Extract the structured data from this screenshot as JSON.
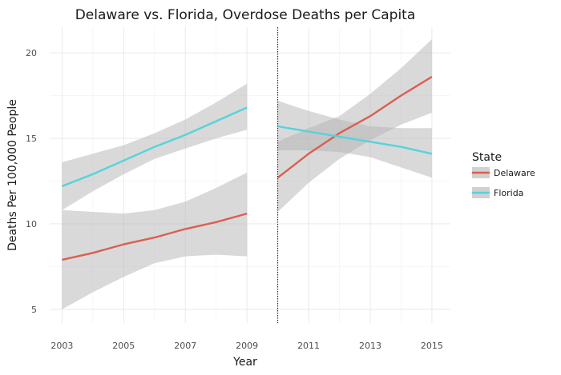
{
  "chart_data": {
    "type": "line",
    "title": "Delaware vs. Florida, Overdose Deaths per Capita",
    "xlabel": "Year",
    "ylabel": "Deaths Per 100,000 People",
    "xlim": [
      2002.6,
      2015.6
    ],
    "ylim": [
      4.2,
      21.5
    ],
    "x_ticks": [
      2003,
      2005,
      2007,
      2009,
      2011,
      2013,
      2015
    ],
    "y_ticks": [
      5,
      10,
      15,
      20
    ],
    "grid": true,
    "legend": {
      "title": "State",
      "position": "right"
    },
    "vline": {
      "x": 2010,
      "style": "dotted"
    },
    "band_color": "#b3b3b3",
    "series": [
      {
        "name": "Delaware",
        "color": "#d95f51",
        "segments": [
          {
            "x": [
              2003,
              2004,
              2005,
              2006,
              2007,
              2008,
              2009
            ],
            "y": [
              7.9,
              8.3,
              8.8,
              9.2,
              9.7,
              10.1,
              10.6
            ],
            "ci_low": [
              5.0,
              6.0,
              6.9,
              7.7,
              8.1,
              8.2,
              8.1
            ],
            "ci_high": [
              10.8,
              10.7,
              10.6,
              10.8,
              11.3,
              12.1,
              13.0
            ]
          },
          {
            "x": [
              2010,
              2011,
              2012,
              2013,
              2014,
              2015
            ],
            "y": [
              12.7,
              14.1,
              15.3,
              16.3,
              17.5,
              18.6
            ],
            "ci_low": [
              10.7,
              12.4,
              13.8,
              14.9,
              15.8,
              16.5
            ],
            "ci_high": [
              14.8,
              15.6,
              16.3,
              17.6,
              19.1,
              20.8
            ]
          }
        ]
      },
      {
        "name": "Florida",
        "color": "#57d2dc",
        "segments": [
          {
            "x": [
              2003,
              2004,
              2005,
              2006,
              2007,
              2008,
              2009
            ],
            "y": [
              12.2,
              12.9,
              13.7,
              14.5,
              15.2,
              16.0,
              16.8
            ],
            "ci_low": [
              10.8,
              11.9,
              12.9,
              13.8,
              14.4,
              15.0,
              15.5
            ],
            "ci_high": [
              13.6,
              14.1,
              14.6,
              15.3,
              16.1,
              17.1,
              18.2
            ]
          },
          {
            "x": [
              2010,
              2011,
              2012,
              2013,
              2014,
              2015
            ],
            "y": [
              15.7,
              15.4,
              15.1,
              14.8,
              14.5,
              14.1
            ],
            "ci_low": [
              14.3,
              14.3,
              14.2,
              13.9,
              13.3,
              12.7
            ],
            "ci_high": [
              17.2,
              16.6,
              16.1,
              15.7,
              15.6,
              15.6
            ]
          }
        ]
      }
    ]
  }
}
